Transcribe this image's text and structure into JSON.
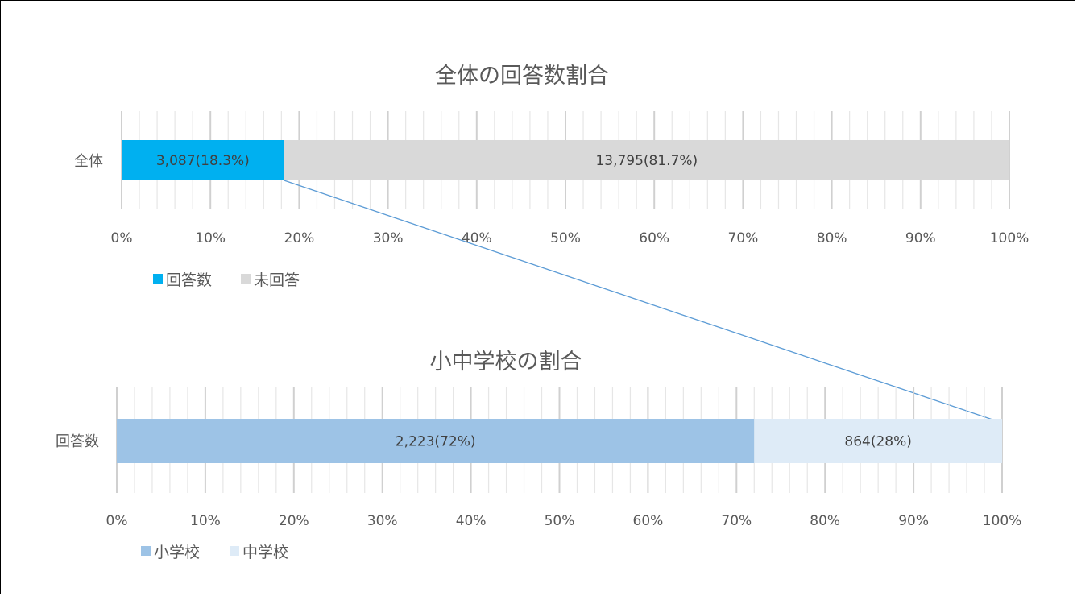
{
  "chart_data": [
    {
      "type": "bar",
      "orientation": "horizontal",
      "stacked": "percent",
      "title": "全体の回答数割合",
      "categories": [
        "全体"
      ],
      "series": [
        {
          "name": "回答数",
          "values": [
            3087
          ],
          "percent": [
            18.3
          ],
          "label": "3,087(18.3%)",
          "color": "#00b0f0"
        },
        {
          "name": "未回答",
          "values": [
            13795
          ],
          "percent": [
            81.7
          ],
          "label": "13,795(81.7%)",
          "color": "#d9d9d9"
        }
      ],
      "xlim": [
        0,
        100
      ],
      "x_ticks": [
        "0%",
        "10%",
        "20%",
        "30%",
        "40%",
        "50%",
        "60%",
        "70%",
        "80%",
        "90%",
        "100%"
      ],
      "grid": true,
      "legend": "bottom-left"
    },
    {
      "type": "bar",
      "orientation": "horizontal",
      "stacked": "percent",
      "title": "小中学校の割合",
      "categories": [
        "回答数"
      ],
      "series": [
        {
          "name": "小学校",
          "values": [
            2223
          ],
          "percent": [
            72
          ],
          "label": "2,223(72%)",
          "color": "#9dc3e6"
        },
        {
          "name": "中学校",
          "values": [
            864
          ],
          "percent": [
            28
          ],
          "label": "864(28%)",
          "color": "#deebf7"
        }
      ],
      "xlim": [
        0,
        100
      ],
      "x_ticks": [
        "0%",
        "10%",
        "20%",
        "30%",
        "40%",
        "50%",
        "60%",
        "70%",
        "80%",
        "90%",
        "100%"
      ],
      "grid": true,
      "legend": "bottom-left"
    }
  ],
  "connector_color": "#5b9bd5"
}
